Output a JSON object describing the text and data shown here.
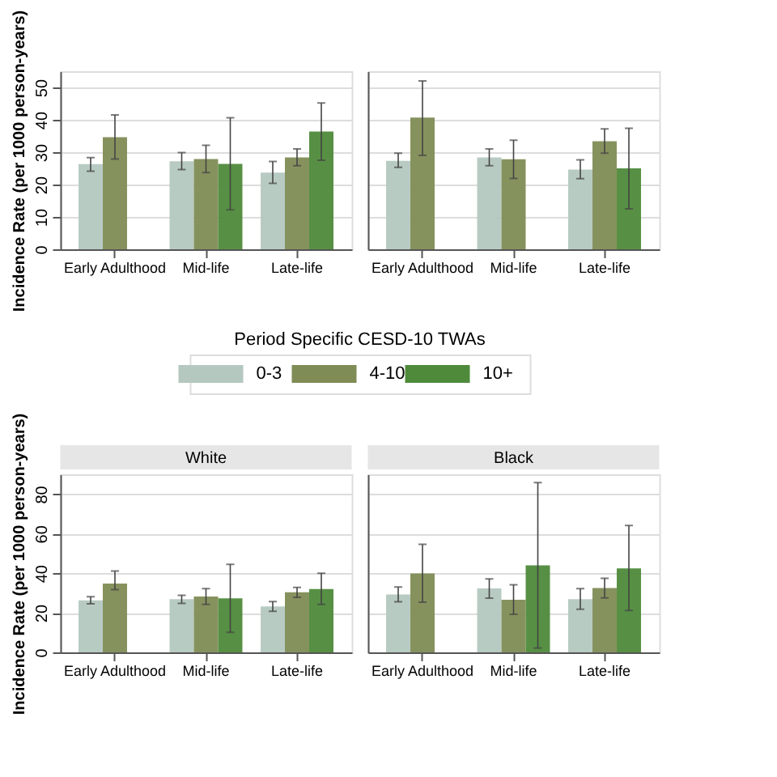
{
  "chart_data": [
    {
      "type": "bar",
      "categories": [
        "Early Adulthood",
        "Mid-life",
        "Late-life"
      ],
      "ylabel": "Incidence Rate (per 1000 person-years)",
      "ylim": [
        0,
        55
      ],
      "yticks": [
        0,
        10,
        20,
        30,
        40,
        50
      ],
      "grid": "y",
      "legend": "bottom",
      "legend_title": "Period Specific CESD-10 TWAs",
      "series": [
        {
          "name": "0-3",
          "color": "#b4c8c0",
          "values": [
            26.3,
            27.2,
            23.7
          ],
          "errors": [
            [
              24.1,
              28.3
            ],
            [
              24.6,
              29.9
            ],
            [
              20.4,
              27.1
            ]
          ]
        },
        {
          "name": "4-10",
          "color": "#7f8c55",
          "values": [
            34.6,
            27.9,
            28.4
          ],
          "errors": [
            [
              27.9,
              41.5
            ],
            [
              23.7,
              32.1
            ],
            [
              25.8,
              31.0
            ]
          ]
        },
        {
          "name": "10+",
          "color": "#4e8a3a",
          "values": [
            null,
            26.4,
            36.4
          ],
          "errors": [
            null,
            [
              12.2,
              40.6
            ],
            [
              27.5,
              45.2
            ]
          ]
        }
      ]
    },
    {
      "type": "bar",
      "categories": [
        "Early Adulthood",
        "Mid-life",
        "Late-life"
      ],
      "ylim": [
        0,
        55
      ],
      "yticks": [
        0,
        10,
        20,
        30,
        40,
        50
      ],
      "grid": "y",
      "tick_labels": "x",
      "series": [
        {
          "name": "0-3",
          "color": "#b4c8c0",
          "values": [
            27.3,
            28.4,
            24.6
          ],
          "errors": [
            [
              25.3,
              29.7
            ],
            [
              25.8,
              31.0
            ],
            [
              21.8,
              27.6
            ]
          ]
        },
        {
          "name": "4-10",
          "color": "#7f8c55",
          "values": [
            40.7,
            27.8,
            33.4
          ],
          "errors": [
            [
              29.0,
              52.0
            ],
            [
              21.9,
              33.7
            ],
            [
              29.7,
              37.2
            ]
          ]
        },
        {
          "name": "10+",
          "color": "#4e8a3a",
          "values": [
            null,
            null,
            25.0
          ],
          "errors": [
            null,
            null,
            [
              12.5,
              37.4
            ]
          ]
        }
      ]
    },
    {
      "type": "bar",
      "title": "White",
      "categories": [
        "Early Adulthood",
        "Mid-life",
        "Late-life"
      ],
      "ylabel": "Incidence Rate (per 1000 person-years)",
      "ylim": [
        0,
        90
      ],
      "yticks": [
        0,
        20,
        40,
        60,
        80
      ],
      "grid": "y",
      "series": [
        {
          "name": "0-3",
          "color": "#b4c8c0",
          "values": [
            26.3,
            26.9,
            23.2
          ],
          "errors": [
            [
              24.5,
              28.1
            ],
            [
              24.8,
              28.8
            ],
            [
              20.8,
              25.7
            ]
          ]
        },
        {
          "name": "4-10",
          "color": "#7f8c55",
          "values": [
            34.8,
            28.2,
            30.4
          ],
          "errors": [
            [
              31.7,
              41.1
            ],
            [
              24.2,
              32.2
            ],
            [
              27.8,
              32.8
            ]
          ]
        },
        {
          "name": "10+",
          "color": "#4e8a3a",
          "values": [
            null,
            27.3,
            32.0
          ],
          "errors": [
            null,
            [
              10.1,
              44.5
            ],
            [
              24.2,
              40.0
            ]
          ]
        }
      ]
    },
    {
      "type": "bar",
      "title": "Black",
      "categories": [
        "Early Adulthood",
        "Mid-life",
        "Late-life"
      ],
      "ylim": [
        0,
        90
      ],
      "yticks": [
        0,
        20,
        40,
        60,
        80
      ],
      "grid": "y",
      "tick_labels": "x",
      "series": [
        {
          "name": "0-3",
          "color": "#b4c8c0",
          "values": [
            29.2,
            32.3,
            26.9
          ],
          "errors": [
            [
              25.6,
              33.0
            ],
            [
              27.4,
              37.1
            ],
            [
              21.8,
              32.2
            ]
          ]
        },
        {
          "name": "4-10",
          "color": "#7f8c55",
          "values": [
            39.9,
            26.6,
            32.5
          ],
          "errors": [
            [
              25.4,
              54.6
            ],
            [
              19.2,
              34.2
            ],
            [
              27.5,
              37.4
            ]
          ]
        },
        {
          "name": "10+",
          "color": "#4e8a3a",
          "values": [
            null,
            44.0,
            42.4
          ],
          "errors": [
            null,
            [
              2.2,
              85.8
            ],
            [
              21.2,
              64.1
            ]
          ]
        }
      ]
    }
  ]
}
